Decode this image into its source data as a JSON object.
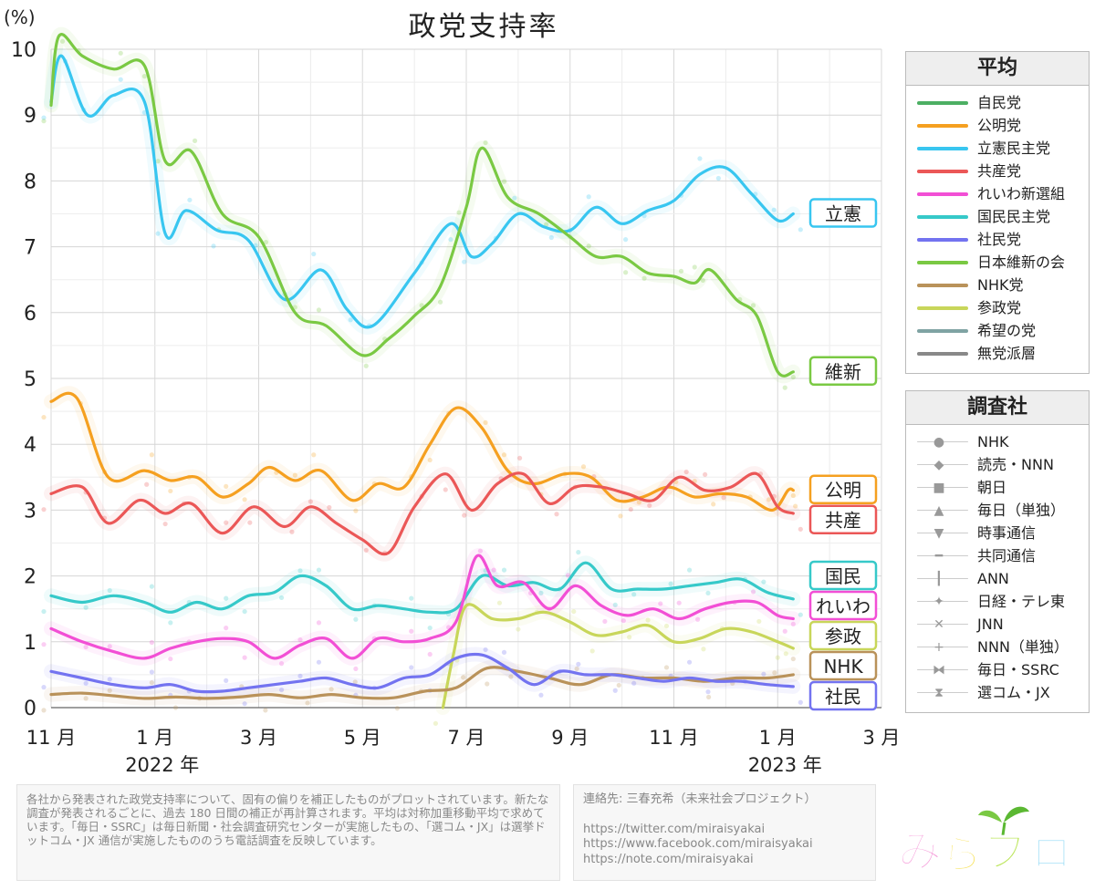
{
  "title": "政党支持率",
  "legend_avg": {
    "title": "平均",
    "items": [
      {
        "label": "自民党",
        "color": "#4caf63"
      },
      {
        "label": "公明党",
        "color": "#f5a020"
      },
      {
        "label": "立憲民主党",
        "color": "#38c6f0"
      },
      {
        "label": "共産党",
        "color": "#eb5757"
      },
      {
        "label": "れいわ新選組",
        "color": "#f24fd5"
      },
      {
        "label": "国民民主党",
        "color": "#36c9c9"
      },
      {
        "label": "社民党",
        "color": "#7373f0"
      },
      {
        "label": "日本維新の会",
        "color": "#7ac943"
      },
      {
        "label": "NHK党",
        "color": "#b9925a"
      },
      {
        "label": "参政党",
        "color": "#c8d65a"
      },
      {
        "label": "希望の党",
        "color": "#7fa3a3"
      },
      {
        "label": "無党派層",
        "color": "#888888"
      }
    ]
  },
  "legend_pollster": {
    "title": "調査社",
    "items": [
      {
        "label": "NHK",
        "icon": "circle-icon",
        "glyph": "●"
      },
      {
        "label": "読売・NNN",
        "icon": "diamond-icon",
        "glyph": "◆"
      },
      {
        "label": "朝日",
        "icon": "square-icon",
        "glyph": "■"
      },
      {
        "label": "毎日（単独）",
        "icon": "triangle-up-icon",
        "glyph": "▲"
      },
      {
        "label": "時事通信",
        "icon": "triangle-down-icon",
        "glyph": "▼"
      },
      {
        "label": "共同通信",
        "icon": "dash-icon",
        "glyph": "━"
      },
      {
        "label": "ANN",
        "icon": "vertical-bar-icon",
        "glyph": "┃"
      },
      {
        "label": "日経・テレ東",
        "icon": "star-icon",
        "glyph": "✦"
      },
      {
        "label": "JNN",
        "icon": "cross-icon",
        "glyph": "✕"
      },
      {
        "label": "NNN（単独）",
        "icon": "plus-icon",
        "glyph": "+"
      },
      {
        "label": "毎日・SSRC",
        "icon": "bowtie-icon",
        "glyph": "⧓"
      },
      {
        "label": "選コム・JX",
        "icon": "hourglass-icon",
        "glyph": "⧗"
      }
    ]
  },
  "note": "各社から発表された政党支持率について、固有の偏りを補正したものがプロットされています。新たな調査が発表されるごとに、過去 180 日間の補正が再計算されます。平均は対称加重移動平均で求めています。「毎日・SSRC」は毎日新聞・社会調査研究センターが実施したもの、「選コム・JX」は選挙ドットコム・JX 通信が実施したもののうち電話調査を反映しています。",
  "contact": {
    "heading": "連絡先: 三春充希（未来社会プロジェクト）",
    "links": [
      "https://twitter.com/miraisyakai",
      "https://www.facebook.com/miraisyakai",
      "https://note.com/miraisyakai"
    ]
  },
  "logo_text": "みらプロ",
  "chart_data": {
    "type": "line",
    "title": "政党支持率",
    "ylabel": "(%)",
    "ylim": [
      0,
      10
    ],
    "yticks": [
      "0",
      "1",
      "2",
      "3",
      "4",
      "5",
      "6",
      "7",
      "8",
      "9",
      "10"
    ],
    "xlim": [
      0,
      16
    ],
    "x_unit": "months since 2021-11-01",
    "xticks": [
      {
        "x": 0,
        "label": "11 月"
      },
      {
        "x": 2,
        "label": "1 月"
      },
      {
        "x": 4,
        "label": "3 月"
      },
      {
        "x": 6,
        "label": "5 月"
      },
      {
        "x": 8,
        "label": "7 月"
      },
      {
        "x": 10,
        "label": "9 月"
      },
      {
        "x": 12,
        "label": "11 月"
      },
      {
        "x": 14,
        "label": "1 月"
      },
      {
        "x": 16,
        "label": "3 月"
      }
    ],
    "year_labels": [
      {
        "x": 2,
        "label": "2022 年"
      },
      {
        "x": 14,
        "label": "2023 年"
      }
    ],
    "grid": true,
    "series": [
      {
        "name": "立憲",
        "color": "#38c6f0",
        "points": [
          [
            0,
            9.2
          ],
          [
            0.2,
            9.9
          ],
          [
            0.7,
            9.0
          ],
          [
            1.2,
            9.3
          ],
          [
            1.8,
            9.2
          ],
          [
            2.2,
            7.2
          ],
          [
            2.6,
            7.55
          ],
          [
            3.2,
            7.25
          ],
          [
            3.8,
            7.1
          ],
          [
            4.5,
            6.2
          ],
          [
            5.2,
            6.65
          ],
          [
            5.7,
            6.05
          ],
          [
            6.2,
            5.8
          ],
          [
            7.0,
            6.6
          ],
          [
            7.7,
            7.35
          ],
          [
            8.1,
            6.85
          ],
          [
            8.5,
            7.05
          ],
          [
            9.0,
            7.5
          ],
          [
            9.5,
            7.3
          ],
          [
            10.0,
            7.25
          ],
          [
            10.5,
            7.6
          ],
          [
            11.0,
            7.35
          ],
          [
            11.5,
            7.55
          ],
          [
            12.0,
            7.7
          ],
          [
            12.5,
            8.1
          ],
          [
            13.0,
            8.2
          ],
          [
            13.5,
            7.8
          ],
          [
            14.0,
            7.4
          ],
          [
            14.3,
            7.5
          ]
        ]
      },
      {
        "name": "維新",
        "color": "#7ac943",
        "points": [
          [
            0,
            9.15
          ],
          [
            0.15,
            10.2
          ],
          [
            0.6,
            9.9
          ],
          [
            1.2,
            9.7
          ],
          [
            1.8,
            9.75
          ],
          [
            2.2,
            8.3
          ],
          [
            2.7,
            8.45
          ],
          [
            3.3,
            7.5
          ],
          [
            4.0,
            7.15
          ],
          [
            4.7,
            6.0
          ],
          [
            5.3,
            5.8
          ],
          [
            6.0,
            5.35
          ],
          [
            6.5,
            5.6
          ],
          [
            7.0,
            5.95
          ],
          [
            7.5,
            6.4
          ],
          [
            8.0,
            7.6
          ],
          [
            8.3,
            8.5
          ],
          [
            8.8,
            7.75
          ],
          [
            9.4,
            7.5
          ],
          [
            10.0,
            7.15
          ],
          [
            10.5,
            6.85
          ],
          [
            11.0,
            6.85
          ],
          [
            11.5,
            6.6
          ],
          [
            12.0,
            6.55
          ],
          [
            12.4,
            6.45
          ],
          [
            12.7,
            6.65
          ],
          [
            13.2,
            6.2
          ],
          [
            13.6,
            5.95
          ],
          [
            14.0,
            5.1
          ],
          [
            14.3,
            5.1
          ]
        ]
      },
      {
        "name": "公明",
        "color": "#f5a020",
        "points": [
          [
            0,
            4.65
          ],
          [
            0.5,
            4.7
          ],
          [
            1.1,
            3.5
          ],
          [
            1.8,
            3.6
          ],
          [
            2.3,
            3.45
          ],
          [
            2.8,
            3.5
          ],
          [
            3.3,
            3.2
          ],
          [
            3.8,
            3.4
          ],
          [
            4.2,
            3.65
          ],
          [
            4.7,
            3.45
          ],
          [
            5.2,
            3.6
          ],
          [
            5.8,
            3.15
          ],
          [
            6.3,
            3.4
          ],
          [
            6.8,
            3.35
          ],
          [
            7.3,
            4.0
          ],
          [
            7.8,
            4.55
          ],
          [
            8.3,
            4.25
          ],
          [
            8.8,
            3.6
          ],
          [
            9.3,
            3.4
          ],
          [
            9.9,
            3.55
          ],
          [
            10.4,
            3.5
          ],
          [
            10.9,
            3.15
          ],
          [
            11.4,
            3.2
          ],
          [
            11.9,
            3.35
          ],
          [
            12.4,
            3.2
          ],
          [
            12.9,
            3.25
          ],
          [
            13.4,
            3.2
          ],
          [
            13.9,
            3.0
          ],
          [
            14.2,
            3.3
          ],
          [
            14.3,
            3.3
          ]
        ]
      },
      {
        "name": "共産",
        "color": "#eb5757",
        "points": [
          [
            0,
            3.25
          ],
          [
            0.6,
            3.35
          ],
          [
            1.1,
            2.8
          ],
          [
            1.7,
            3.15
          ],
          [
            2.2,
            2.95
          ],
          [
            2.7,
            3.1
          ],
          [
            3.3,
            2.65
          ],
          [
            3.9,
            3.05
          ],
          [
            4.5,
            2.75
          ],
          [
            5.0,
            3.05
          ],
          [
            5.5,
            2.8
          ],
          [
            6.0,
            2.55
          ],
          [
            6.5,
            2.35
          ],
          [
            7.0,
            3.05
          ],
          [
            7.6,
            3.55
          ],
          [
            8.1,
            3.0
          ],
          [
            8.6,
            3.4
          ],
          [
            9.1,
            3.55
          ],
          [
            9.6,
            3.1
          ],
          [
            10.1,
            3.35
          ],
          [
            10.6,
            3.35
          ],
          [
            11.1,
            3.25
          ],
          [
            11.6,
            3.15
          ],
          [
            12.1,
            3.5
          ],
          [
            12.6,
            3.3
          ],
          [
            13.1,
            3.35
          ],
          [
            13.6,
            3.55
          ],
          [
            14.0,
            3.05
          ],
          [
            14.3,
            2.95
          ]
        ]
      },
      {
        "name": "国民",
        "color": "#36c9c9",
        "points": [
          [
            0,
            1.7
          ],
          [
            0.6,
            1.6
          ],
          [
            1.2,
            1.7
          ],
          [
            1.8,
            1.6
          ],
          [
            2.3,
            1.45
          ],
          [
            2.8,
            1.6
          ],
          [
            3.3,
            1.5
          ],
          [
            3.8,
            1.7
          ],
          [
            4.3,
            1.75
          ],
          [
            4.8,
            2.0
          ],
          [
            5.3,
            1.85
          ],
          [
            5.8,
            1.5
          ],
          [
            6.3,
            1.55
          ],
          [
            6.8,
            1.5
          ],
          [
            7.3,
            1.45
          ],
          [
            7.8,
            1.5
          ],
          [
            8.3,
            2.0
          ],
          [
            8.8,
            1.85
          ],
          [
            9.3,
            1.9
          ],
          [
            9.8,
            1.8
          ],
          [
            10.3,
            2.2
          ],
          [
            10.8,
            1.8
          ],
          [
            11.3,
            1.8
          ],
          [
            11.8,
            1.8
          ],
          [
            12.3,
            1.85
          ],
          [
            12.8,
            1.9
          ],
          [
            13.3,
            1.95
          ],
          [
            13.8,
            1.75
          ],
          [
            14.3,
            1.65
          ]
        ]
      },
      {
        "name": "れいわ",
        "color": "#f24fd5",
        "points": [
          [
            0,
            1.2
          ],
          [
            0.6,
            1.0
          ],
          [
            1.2,
            0.85
          ],
          [
            1.8,
            0.75
          ],
          [
            2.3,
            0.9
          ],
          [
            2.8,
            1.0
          ],
          [
            3.3,
            1.05
          ],
          [
            3.8,
            1.0
          ],
          [
            4.3,
            0.75
          ],
          [
            4.8,
            0.95
          ],
          [
            5.3,
            1.05
          ],
          [
            5.8,
            0.75
          ],
          [
            6.3,
            1.05
          ],
          [
            6.8,
            1.0
          ],
          [
            7.3,
            1.05
          ],
          [
            7.8,
            1.3
          ],
          [
            8.2,
            2.3
          ],
          [
            8.6,
            1.85
          ],
          [
            9.1,
            1.9
          ],
          [
            9.6,
            1.5
          ],
          [
            10.1,
            1.85
          ],
          [
            10.6,
            1.55
          ],
          [
            11.1,
            1.4
          ],
          [
            11.6,
            1.5
          ],
          [
            12.1,
            1.35
          ],
          [
            12.6,
            1.5
          ],
          [
            13.1,
            1.6
          ],
          [
            13.6,
            1.6
          ],
          [
            14.0,
            1.4
          ],
          [
            14.3,
            1.35
          ]
        ]
      },
      {
        "name": "参政",
        "color": "#c8d65a",
        "points": [
          [
            7.55,
            0.0
          ],
          [
            7.75,
            0.8
          ],
          [
            8.0,
            1.55
          ],
          [
            8.5,
            1.35
          ],
          [
            9.0,
            1.35
          ],
          [
            9.5,
            1.45
          ],
          [
            10.0,
            1.3
          ],
          [
            10.5,
            1.1
          ],
          [
            11.0,
            1.15
          ],
          [
            11.5,
            1.25
          ],
          [
            12.0,
            1.0
          ],
          [
            12.5,
            1.05
          ],
          [
            13.0,
            1.2
          ],
          [
            13.5,
            1.15
          ],
          [
            14.0,
            1.0
          ],
          [
            14.3,
            0.9
          ]
        ]
      },
      {
        "name": "NHK",
        "color": "#b9925a",
        "points": [
          [
            0,
            0.2
          ],
          [
            0.6,
            0.22
          ],
          [
            1.2,
            0.18
          ],
          [
            1.8,
            0.14
          ],
          [
            2.4,
            0.16
          ],
          [
            3.0,
            0.14
          ],
          [
            3.6,
            0.16
          ],
          [
            4.2,
            0.2
          ],
          [
            4.8,
            0.15
          ],
          [
            5.4,
            0.2
          ],
          [
            6.0,
            0.15
          ],
          [
            6.6,
            0.15
          ],
          [
            7.2,
            0.25
          ],
          [
            7.8,
            0.3
          ],
          [
            8.4,
            0.6
          ],
          [
            9.0,
            0.55
          ],
          [
            9.6,
            0.45
          ],
          [
            10.2,
            0.35
          ],
          [
            10.8,
            0.5
          ],
          [
            11.4,
            0.45
          ],
          [
            12.0,
            0.45
          ],
          [
            12.6,
            0.4
          ],
          [
            13.2,
            0.45
          ],
          [
            13.8,
            0.45
          ],
          [
            14.3,
            0.5
          ]
        ]
      },
      {
        "name": "社民",
        "color": "#7373f0",
        "points": [
          [
            0,
            0.55
          ],
          [
            0.6,
            0.45
          ],
          [
            1.2,
            0.35
          ],
          [
            1.8,
            0.3
          ],
          [
            2.3,
            0.35
          ],
          [
            2.8,
            0.25
          ],
          [
            3.3,
            0.25
          ],
          [
            3.8,
            0.3
          ],
          [
            4.3,
            0.35
          ],
          [
            4.8,
            0.4
          ],
          [
            5.3,
            0.45
          ],
          [
            5.8,
            0.35
          ],
          [
            6.3,
            0.3
          ],
          [
            6.8,
            0.45
          ],
          [
            7.3,
            0.5
          ],
          [
            7.8,
            0.75
          ],
          [
            8.3,
            0.8
          ],
          [
            8.8,
            0.6
          ],
          [
            9.3,
            0.35
          ],
          [
            9.8,
            0.55
          ],
          [
            10.3,
            0.5
          ],
          [
            10.8,
            0.5
          ],
          [
            11.3,
            0.45
          ],
          [
            11.8,
            0.4
          ],
          [
            12.3,
            0.45
          ],
          [
            12.8,
            0.4
          ],
          [
            13.3,
            0.4
          ],
          [
            13.8,
            0.35
          ],
          [
            14.3,
            0.32
          ]
        ]
      }
    ],
    "end_labels": [
      {
        "text": "立憲",
        "color": "#38c6f0"
      },
      {
        "text": "維新",
        "color": "#7ac943"
      },
      {
        "text": "公明",
        "color": "#f5a020"
      },
      {
        "text": "共産",
        "color": "#eb5757"
      },
      {
        "text": "国民",
        "color": "#36c9c9"
      },
      {
        "text": "れいわ",
        "color": "#f24fd5"
      },
      {
        "text": "参政",
        "color": "#c8d65a"
      },
      {
        "text": "NHK",
        "color": "#b9925a"
      },
      {
        "text": "社民",
        "color": "#7373f0"
      }
    ]
  }
}
